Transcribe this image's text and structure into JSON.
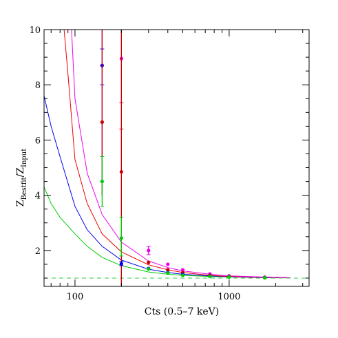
{
  "chart_data": {
    "type": "scatter",
    "xlabel": "Cts (0.5–7 keV)",
    "ylabel_main": "Z",
    "ylabel_sub1": "Bestfit",
    "ylabel_slash": "/Z",
    "ylabel_sub2": "Input",
    "xscale": "log",
    "xlim": [
      63,
      3300
    ],
    "ylim": [
      0.7,
      10
    ],
    "x_tick_labels": [
      "100",
      "1000"
    ],
    "y_ticks": [
      2,
      4,
      6,
      8,
      10
    ],
    "y_tick_labels": [
      "2",
      "4",
      "6",
      "8",
      "10"
    ],
    "reference_line": {
      "y": 1.0,
      "color": "#2ecc40",
      "style": "dashed"
    },
    "curves": [
      {
        "color": "#00cc00",
        "x": [
          63,
          70,
          80,
          100,
          120,
          150,
          200,
          300,
          400,
          500,
          750,
          1000,
          1700,
          2500
        ],
        "y": [
          4.3,
          3.7,
          3.2,
          2.6,
          2.15,
          1.75,
          1.45,
          1.22,
          1.14,
          1.1,
          1.06,
          1.04,
          1.02,
          1.01
        ]
      },
      {
        "color": "#0000ee",
        "x": [
          63,
          70,
          80,
          100,
          120,
          150,
          200,
          300,
          400,
          500,
          750,
          1000,
          1700,
          2500
        ],
        "y": [
          7.6,
          6.5,
          5.4,
          3.6,
          2.75,
          2.15,
          1.65,
          1.32,
          1.2,
          1.14,
          1.08,
          1.05,
          1.02,
          1.01
        ]
      },
      {
        "color": "#ee0000",
        "x": [
          85,
          90,
          100,
          120,
          150,
          200,
          300,
          400,
          500,
          750,
          1000,
          1700,
          2500
        ],
        "y": [
          10.0,
          8.4,
          5.3,
          3.7,
          2.6,
          1.95,
          1.48,
          1.3,
          1.2,
          1.1,
          1.06,
          1.03,
          1.01
        ]
      },
      {
        "color": "#ee00ee",
        "x": [
          95,
          100,
          120,
          150,
          200,
          300,
          400,
          500,
          750,
          1000,
          1700,
          2500
        ],
        "y": [
          10.0,
          7.5,
          4.8,
          3.3,
          2.3,
          1.62,
          1.38,
          1.26,
          1.14,
          1.08,
          1.04,
          1.02
        ]
      }
    ],
    "points": [
      {
        "color": "#0000ee",
        "x": 150,
        "y": 8.7,
        "err_lo": 4.0,
        "err_hi": 10.0,
        "caps": [
          9.3,
          8.0
        ]
      },
      {
        "color": "#cc0000",
        "x": 150,
        "y": 6.65,
        "err_lo": 4.0,
        "err_hi": 10.0,
        "caps": []
      },
      {
        "color": "#00cc00",
        "x": 150,
        "y": 4.5,
        "err_lo": 3.6,
        "err_hi": 5.4,
        "caps": [
          5.4,
          3.6
        ]
      },
      {
        "color": "#ee00ee",
        "x": 200,
        "y": 8.95,
        "err_lo": 0.7,
        "err_hi": 10.0,
        "caps": []
      },
      {
        "color": "#cc0000",
        "x": 200,
        "y": 4.85,
        "err_lo": 0.7,
        "err_hi": 10.0,
        "caps": [
          7.35,
          6.4
        ]
      },
      {
        "color": "#00cc00",
        "x": 200,
        "y": 2.45,
        "err_lo": 1.8,
        "err_hi": 3.2,
        "caps": [
          3.2,
          1.8
        ]
      },
      {
        "color": "#0000ee",
        "x": 200,
        "y": 1.52,
        "err_lo": 1.45,
        "err_hi": 1.6,
        "caps": [
          1.6,
          1.45
        ]
      },
      {
        "color": "#ee00ee",
        "x": 300,
        "y": 2.0,
        "err_lo": 1.85,
        "err_hi": 2.15,
        "caps": [
          2.15,
          1.85
        ]
      },
      {
        "color": "#cc0000",
        "x": 300,
        "y": 1.57,
        "err_lo": 1.57,
        "err_hi": 1.57,
        "caps": []
      },
      {
        "color": "#0000ee",
        "x": 300,
        "y": 1.35,
        "err_lo": 1.35,
        "err_hi": 1.35,
        "caps": []
      },
      {
        "color": "#00cc00",
        "x": 300,
        "y": 1.33,
        "err_lo": 1.33,
        "err_hi": 1.33,
        "caps": []
      },
      {
        "color": "#ee00ee",
        "x": 400,
        "y": 1.5,
        "err_lo": 1.5,
        "err_hi": 1.5,
        "caps": []
      },
      {
        "color": "#cc0000",
        "x": 400,
        "y": 1.3,
        "err_lo": 1.3,
        "err_hi": 1.3,
        "caps": []
      },
      {
        "color": "#0000ee",
        "x": 400,
        "y": 1.2,
        "err_lo": 1.2,
        "err_hi": 1.2,
        "caps": []
      },
      {
        "color": "#00cc00",
        "x": 400,
        "y": 1.18,
        "err_lo": 1.18,
        "err_hi": 1.18,
        "caps": []
      },
      {
        "color": "#ee00ee",
        "x": 500,
        "y": 1.3,
        "err_lo": 1.3,
        "err_hi": 1.3,
        "caps": []
      },
      {
        "color": "#cc0000",
        "x": 500,
        "y": 1.2,
        "err_lo": 1.2,
        "err_hi": 1.2,
        "caps": []
      },
      {
        "color": "#0000ee",
        "x": 500,
        "y": 1.13,
        "err_lo": 1.13,
        "err_hi": 1.13,
        "caps": []
      },
      {
        "color": "#00cc00",
        "x": 500,
        "y": 1.1,
        "err_lo": 1.1,
        "err_hi": 1.1,
        "caps": []
      },
      {
        "color": "#ee00ee",
        "x": 750,
        "y": 1.15,
        "err_lo": 1.15,
        "err_hi": 1.15,
        "caps": []
      },
      {
        "color": "#cc0000",
        "x": 750,
        "y": 1.1,
        "err_lo": 1.1,
        "err_hi": 1.1,
        "caps": []
      },
      {
        "color": "#0000ee",
        "x": 750,
        "y": 1.07,
        "err_lo": 1.07,
        "err_hi": 1.07,
        "caps": []
      },
      {
        "color": "#00cc00",
        "x": 750,
        "y": 1.06,
        "err_lo": 1.06,
        "err_hi": 1.06,
        "caps": []
      },
      {
        "color": "#ee00ee",
        "x": 1000,
        "y": 1.08,
        "err_lo": 1.08,
        "err_hi": 1.08,
        "caps": []
      },
      {
        "color": "#cc0000",
        "x": 1000,
        "y": 1.06,
        "err_lo": 1.06,
        "err_hi": 1.06,
        "caps": []
      },
      {
        "color": "#0000ee",
        "x": 1000,
        "y": 1.05,
        "err_lo": 1.05,
        "err_hi": 1.05,
        "caps": []
      },
      {
        "color": "#00cc00",
        "x": 1000,
        "y": 1.04,
        "err_lo": 1.04,
        "err_hi": 1.04,
        "caps": []
      },
      {
        "color": "#ee00ee",
        "x": 1700,
        "y": 1.03,
        "err_lo": 1.03,
        "err_hi": 1.03,
        "caps": []
      },
      {
        "color": "#cc0000",
        "x": 1700,
        "y": 1.02,
        "err_lo": 1.02,
        "err_hi": 1.02,
        "caps": []
      },
      {
        "color": "#0000ee",
        "x": 1700,
        "y": 1.02,
        "err_lo": 1.02,
        "err_hi": 1.02,
        "caps": []
      },
      {
        "color": "#00cc00",
        "x": 1700,
        "y": 1.01,
        "err_lo": 1.01,
        "err_hi": 1.01,
        "caps": []
      }
    ]
  }
}
